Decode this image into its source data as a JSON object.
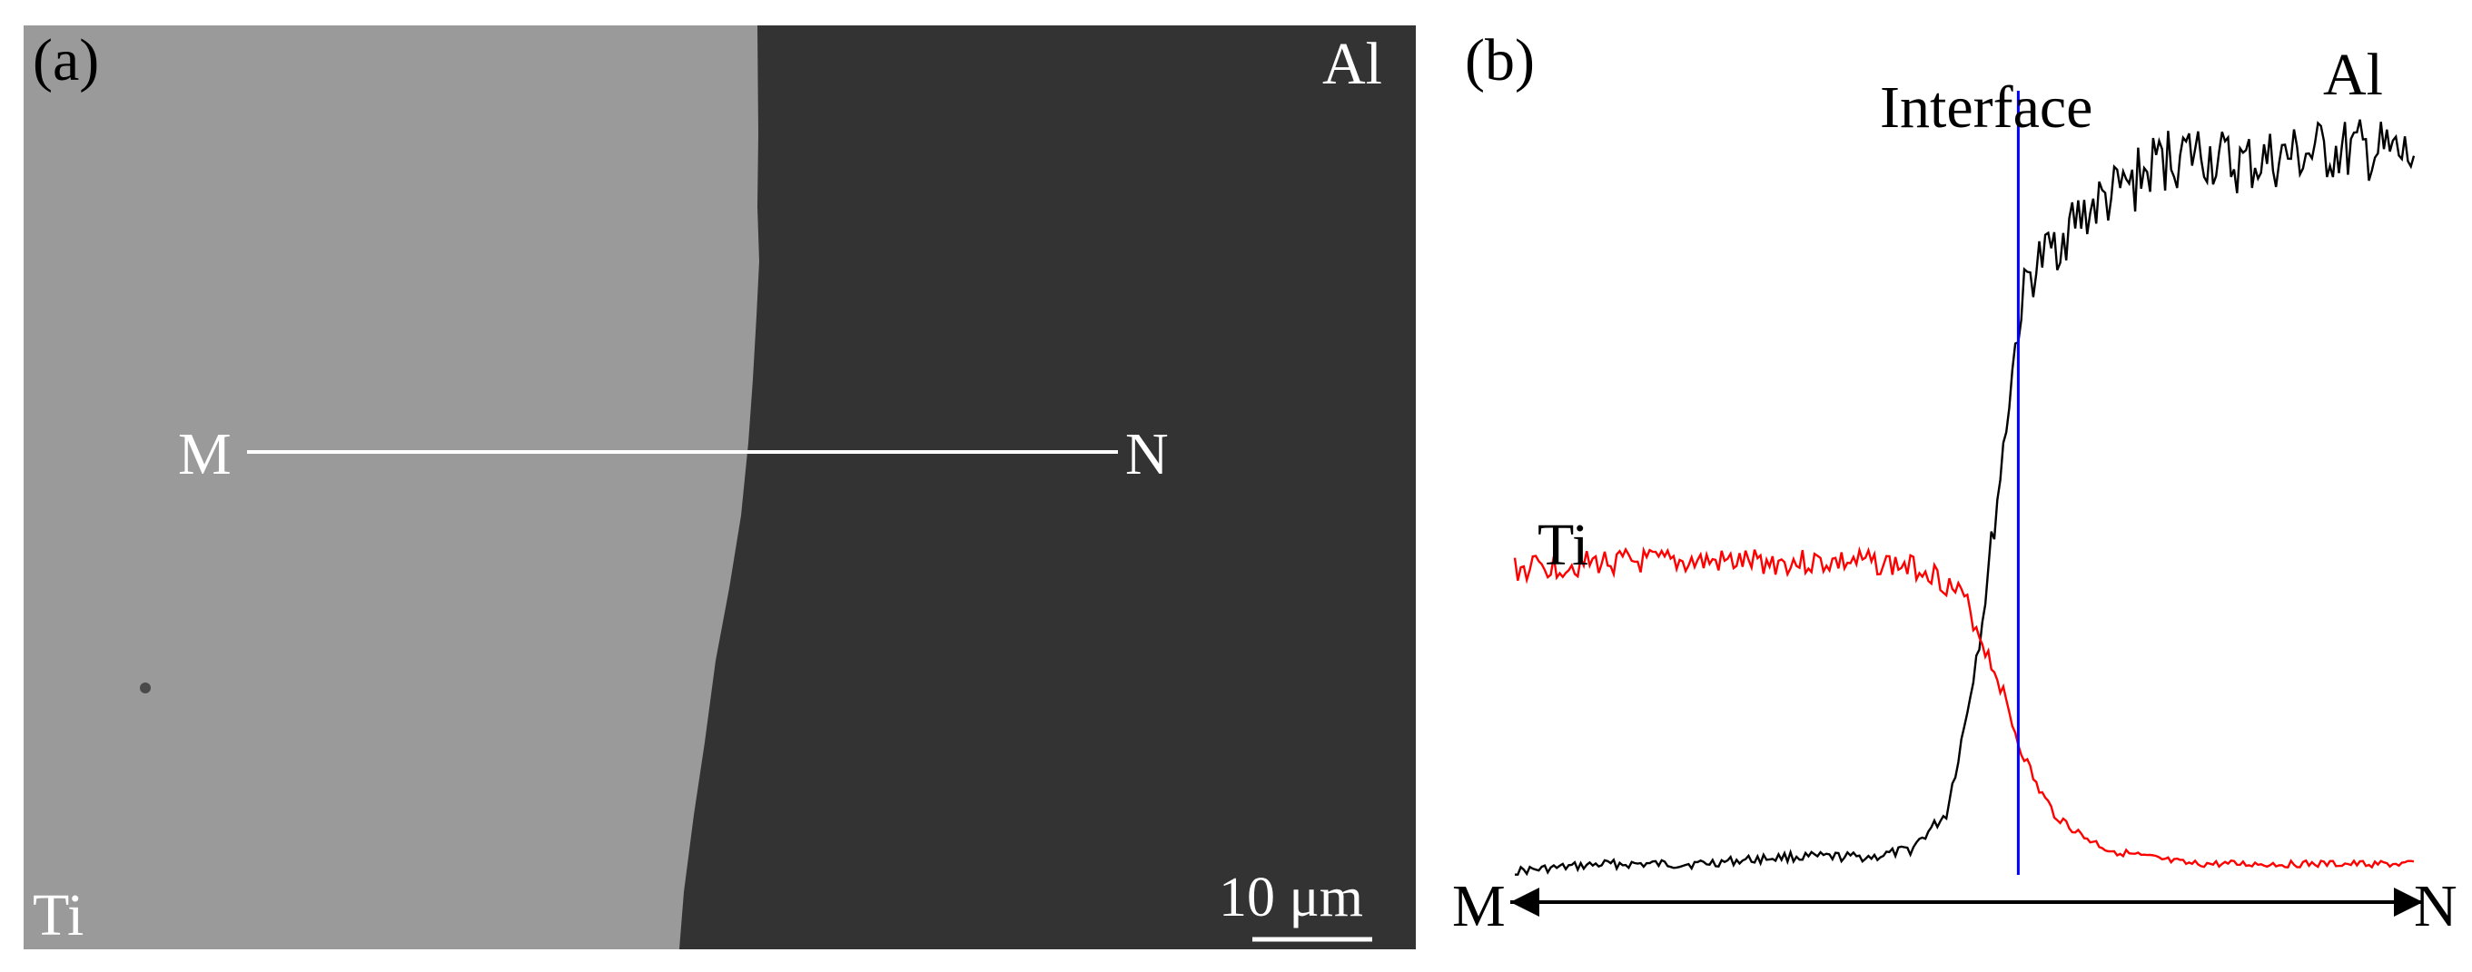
{
  "figure": {
    "panel_a": {
      "tag": "(a)",
      "region_right_label": "Al",
      "region_left_label": "Ti",
      "line_start_label": "M",
      "line_end_label": "N",
      "scale_bar_label": "10 μm",
      "colors": {
        "ti_region": "#9a9a9a",
        "al_region": "#333333",
        "annotation": "#ffffff"
      }
    },
    "panel_b": {
      "tag": "(b)",
      "interface_label": "Interface",
      "al_curve_label": "Al",
      "ti_curve_label": "Ti",
      "axis_start_label": "M",
      "axis_end_label": "N",
      "colors": {
        "al": "#000000",
        "ti": "#ff0000",
        "interface": "#0000ff",
        "axis": "#000000"
      }
    }
  },
  "chart_data": {
    "type": "line",
    "title": "",
    "xlabel": "",
    "ylabel": "",
    "x_start_label": "M",
    "x_end_label": "N",
    "interface_x": 0.56,
    "series": [
      {
        "name": "Al",
        "x": [
          0.0,
          0.1,
          0.2,
          0.3,
          0.4,
          0.44,
          0.48,
          0.5,
          0.52,
          0.54,
          0.55,
          0.56,
          0.57,
          0.58,
          0.6,
          0.62,
          0.64,
          0.68,
          0.72,
          0.76,
          0.8,
          0.85,
          0.9,
          0.95,
          1.0
        ],
        "values": [
          0.0,
          0.01,
          0.01,
          0.02,
          0.02,
          0.03,
          0.08,
          0.2,
          0.35,
          0.55,
          0.66,
          0.76,
          0.82,
          0.84,
          0.87,
          0.9,
          0.92,
          0.95,
          0.99,
          1.0,
          0.98,
          0.99,
          1.0,
          1.0,
          0.99
        ]
      },
      {
        "name": "Ti",
        "x": [
          0.0,
          0.1,
          0.2,
          0.3,
          0.4,
          0.46,
          0.5,
          0.52,
          0.54,
          0.56,
          0.58,
          0.6,
          0.63,
          0.66,
          0.7,
          0.75,
          0.8,
          0.85,
          0.9,
          0.95,
          1.0
        ],
        "values": [
          0.42,
          0.43,
          0.43,
          0.43,
          0.43,
          0.42,
          0.38,
          0.32,
          0.26,
          0.18,
          0.12,
          0.08,
          0.05,
          0.03,
          0.02,
          0.01,
          0.01,
          0.01,
          0.01,
          0.01,
          0.01
        ]
      }
    ]
  }
}
